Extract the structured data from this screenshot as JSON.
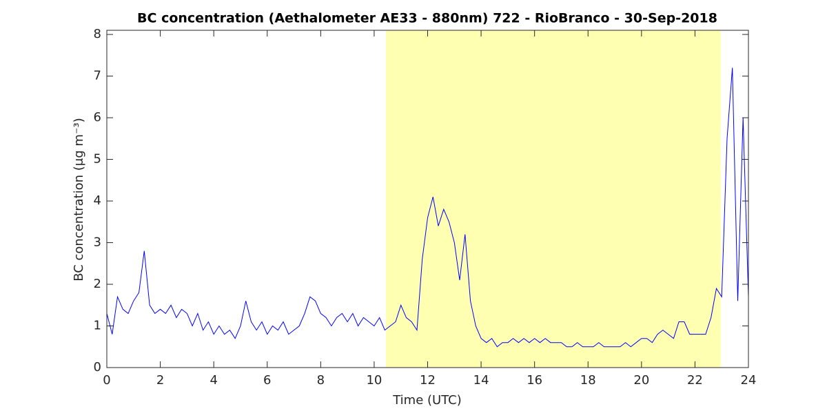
{
  "chart_data": {
    "type": "line",
    "title": "BC concentration (Aethalometer AE33 - 880nm) 722 - RioBranco - 30-Sep-2018",
    "xlabel": "Time (UTC)",
    "ylabel": "BC concentration (μg m⁻³)",
    "color": "#0000ff",
    "highlight_span": [
      10.44,
      22.96
    ],
    "highlight_color": "#ffffb2",
    "x": [
      0,
      0.2,
      0.4,
      0.6,
      0.8,
      1,
      1.2,
      1.4,
      1.6,
      1.8,
      2,
      2.2,
      2.4,
      2.6,
      2.8,
      3,
      3.2,
      3.4,
      3.6,
      3.8,
      4,
      4.2,
      4.4,
      4.6,
      4.8,
      5,
      5.2,
      5.4,
      5.6,
      5.8,
      6,
      6.2,
      6.4,
      6.6,
      6.8,
      7,
      7.2,
      7.4,
      7.6,
      7.8,
      8,
      8.2,
      8.4,
      8.6,
      8.8,
      9,
      9.2,
      9.4,
      9.6,
      9.8,
      10,
      10.2,
      10.4,
      10.6,
      10.8,
      11,
      11.2,
      11.4,
      11.6,
      11.8,
      12,
      12.2,
      12.4,
      12.6,
      12.8,
      13,
      13.2,
      13.4,
      13.6,
      13.8,
      14,
      14.2,
      14.4,
      14.6,
      14.8,
      15,
      15.2,
      15.4,
      15.6,
      15.8,
      16,
      16.2,
      16.4,
      16.6,
      16.8,
      17,
      17.2,
      17.4,
      17.6,
      17.8,
      18,
      18.2,
      18.4,
      18.6,
      18.8,
      19,
      19.2,
      19.4,
      19.6,
      19.8,
      20,
      20.2,
      20.4,
      20.6,
      20.8,
      21,
      21.2,
      21.4,
      21.6,
      21.8,
      22,
      22.2,
      22.4,
      22.6,
      22.8,
      23,
      23.2,
      23.4,
      23.6,
      23.8,
      24
    ],
    "values": [
      1.3,
      0.8,
      1.7,
      1.4,
      1.3,
      1.6,
      1.8,
      2.8,
      1.5,
      1.3,
      1.4,
      1.3,
      1.5,
      1.2,
      1.4,
      1.3,
      1.0,
      1.3,
      0.9,
      1.1,
      0.8,
      1.0,
      0.8,
      0.9,
      0.7,
      1.0,
      1.6,
      1.1,
      0.9,
      1.1,
      0.8,
      1.0,
      0.9,
      1.1,
      0.8,
      0.9,
      1.0,
      1.3,
      1.7,
      1.6,
      1.3,
      1.2,
      1.0,
      1.2,
      1.3,
      1.1,
      1.3,
      1.0,
      1.2,
      1.1,
      1.0,
      1.2,
      0.9,
      1.0,
      1.1,
      1.5,
      1.2,
      1.1,
      0.9,
      2.6,
      3.6,
      4.1,
      3.4,
      3.8,
      3.5,
      3.0,
      2.1,
      3.2,
      1.6,
      1.0,
      0.7,
      0.6,
      0.7,
      0.5,
      0.6,
      0.6,
      0.7,
      0.6,
      0.7,
      0.6,
      0.7,
      0.6,
      0.7,
      0.6,
      0.6,
      0.6,
      0.5,
      0.5,
      0.6,
      0.5,
      0.5,
      0.5,
      0.6,
      0.5,
      0.5,
      0.5,
      0.5,
      0.6,
      0.5,
      0.6,
      0.7,
      0.7,
      0.6,
      0.8,
      0.9,
      0.8,
      0.7,
      1.1,
      1.1,
      0.8,
      0.8,
      0.8,
      0.8,
      1.2,
      1.9,
      1.7,
      5.5,
      7.2,
      1.6,
      6.0,
      1.7
    ],
    "xlim": [
      0,
      24
    ],
    "xticks": [
      0,
      2,
      4,
      6,
      8,
      10,
      12,
      14,
      16,
      18,
      20,
      22,
      24
    ],
    "ylim": [
      0,
      8.1
    ],
    "yticks": [
      0,
      1,
      2,
      3,
      4,
      5,
      6,
      7,
      8
    ]
  }
}
